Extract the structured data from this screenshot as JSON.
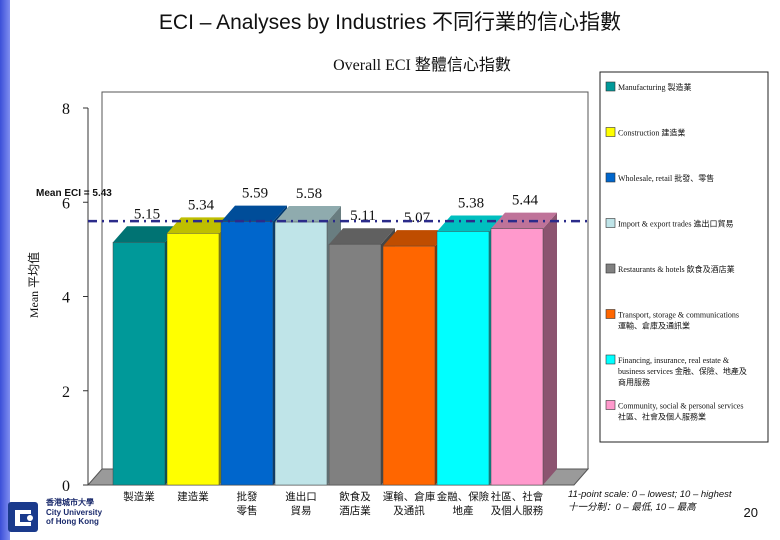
{
  "slide_title": "ECI – Analyses by Industries 不同行業的信心指數",
  "page_number": "20",
  "scale_note": {
    "line1": "11-point scale: 0 – lowest; 10 – highest",
    "line2": "十一分制：0 – 最低, 10 – 最高"
  },
  "logo": {
    "line1": "香港城市大學",
    "line2": "City University",
    "line3": "of Hong Kong"
  },
  "chart_data": {
    "type": "bar",
    "title": "Overall ECI 整體信心指數",
    "ylabel": "Mean 平均值",
    "ylim": [
      0,
      8
    ],
    "yticks": [
      "0",
      "2",
      "4",
      "6",
      "8"
    ],
    "reference_line": {
      "label": "Mean ECI = 5.43",
      "value": 5.43,
      "color": "#2b2b8a"
    },
    "categories": [
      [
        "製造業"
      ],
      [
        "建造業"
      ],
      [
        "批發",
        "零售"
      ],
      [
        "進出口",
        "貿易"
      ],
      [
        "飲食及",
        "酒店業"
      ],
      [
        "運輸、倉庫",
        "及通訊"
      ],
      [
        "金融、保險",
        "地產"
      ],
      [
        "社區、社會",
        "及個人服務"
      ]
    ],
    "values": [
      5.15,
      5.34,
      5.59,
      5.58,
      5.11,
      5.07,
      5.38,
      5.44
    ],
    "value_labels": [
      "5.15",
      "5.34",
      "5.59",
      "5.58",
      "5.11",
      "5.07",
      "5.38",
      "5.44"
    ],
    "colors": [
      "#009999",
      "#ffff00",
      "#0066cc",
      "#bfe4e8",
      "#808080",
      "#ff6600",
      "#00ffff",
      "#ff99cc"
    ],
    "legend_position": "right",
    "legend": [
      [
        "Manufacturing 製造業"
      ],
      [
        "Construction 建造業"
      ],
      [
        "Wholesale, retail 批發、零售"
      ],
      [
        "Import & export trades 進出口貿易"
      ],
      [
        "Restaurants & hotels 飲食及酒店業"
      ],
      [
        "Transport, storage & communications",
        "運輸、倉庫及通訊業"
      ],
      [
        "Financing, insurance, real estate &",
        "business services 金融、保險、地產及",
        "商用服務"
      ],
      [
        "Community, social & personal services",
        "社區、社會及個人服務業"
      ]
    ]
  }
}
